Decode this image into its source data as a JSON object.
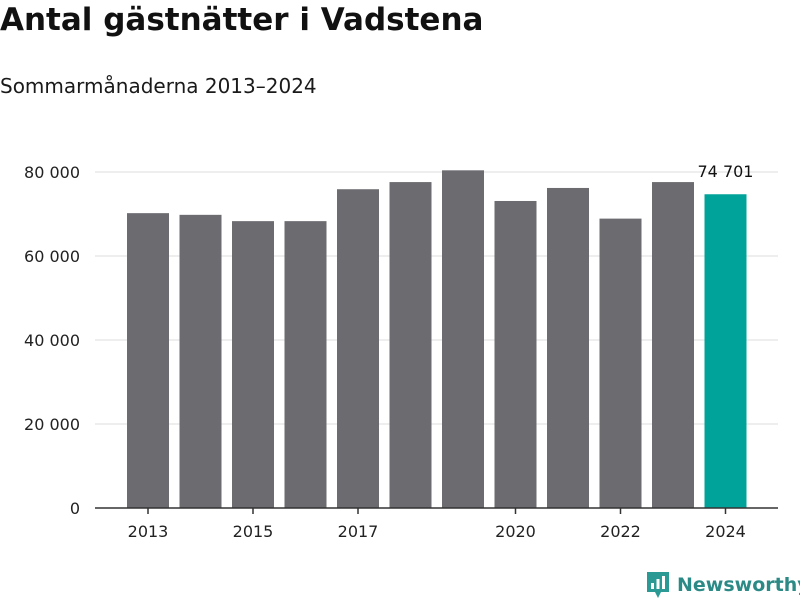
{
  "header": {
    "title": "Antal gästnätter i Vadstena",
    "subtitle": "Sommarmånaderna 2013–2024"
  },
  "brand": {
    "name": "Newsworthy",
    "icon": "newsworthy-logo-icon",
    "color": "#2c9a94"
  },
  "chart_data": {
    "type": "bar",
    "title": "Antal gästnätter i Vadstena",
    "subtitle": "Sommarmånaderna 2013–2024",
    "categories": [
      "2013",
      "2014",
      "2015",
      "2016",
      "2017",
      "2018",
      "2019",
      "2020",
      "2021",
      "2022",
      "2023",
      "2024"
    ],
    "values": [
      70200,
      69800,
      68300,
      68300,
      75900,
      77600,
      80400,
      73100,
      76200,
      68900,
      77600,
      74701
    ],
    "x_tick_labels": [
      "2013",
      "2015",
      "2017",
      "2020",
      "2022",
      "2024"
    ],
    "y_ticks": [
      0,
      20000,
      40000,
      60000,
      80000
    ],
    "y_tick_labels": [
      "0",
      "20 000",
      "40 000",
      "60 000",
      "80 000"
    ],
    "ylim": [
      0,
      84000
    ],
    "xlabel": "",
    "ylabel": "",
    "grid": "horizontal",
    "bar_color": "#6b6b70",
    "highlight_color": "#00a399",
    "highlight_category": "2024",
    "data_labels": [
      {
        "category": "2024",
        "text": "74 701"
      }
    ]
  }
}
